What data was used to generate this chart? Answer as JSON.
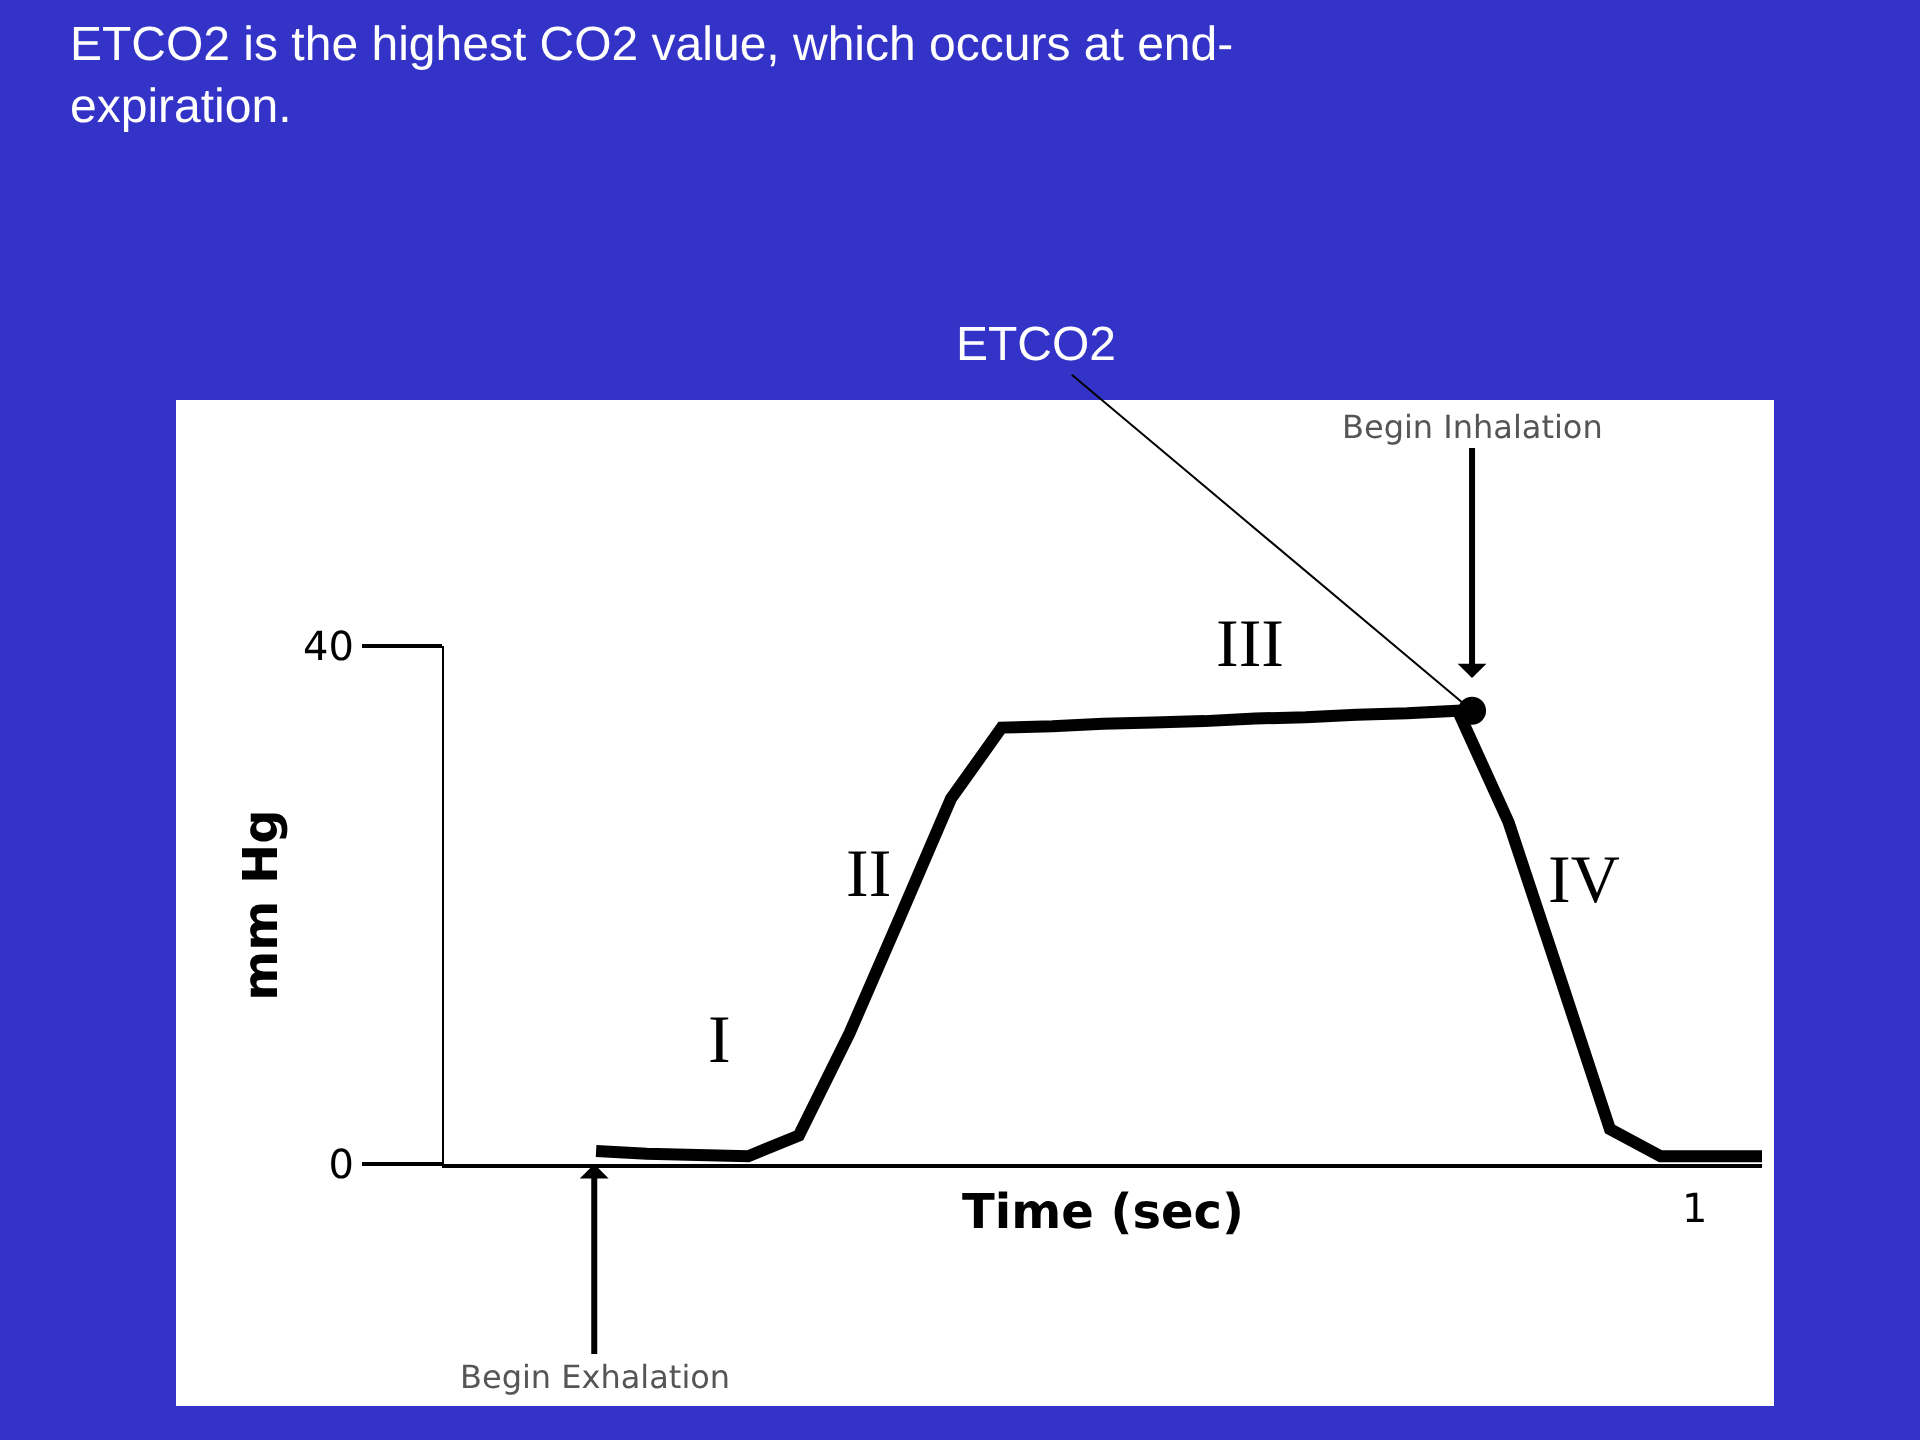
{
  "chart_data": {
    "type": "line",
    "title": "ETCO2 is the highest CO2 value, which occurs at end-\nexpiration.",
    "xlabel": "Time (sec)",
    "ylabel": "mm Hg",
    "ylim": [
      0,
      40
    ],
    "yticks": [
      0,
      40
    ],
    "categories": [
      null,
      null,
      null,
      null,
      null,
      null,
      null,
      null,
      null,
      null,
      null,
      null,
      null,
      null,
      null,
      null,
      null,
      null,
      null,
      null,
      null,
      null,
      null,
      null,
      null,
      null,
      null
    ],
    "series": [
      {
        "color": "#000000",
        "values": [
          null,
          null,
          null,
          1.0,
          0.8,
          0.7,
          0.6,
          2.2,
          10.1,
          19.1,
          28.2,
          33.7,
          33.8,
          34.0,
          34.1,
          34.2,
          34.4,
          34.5,
          34.7,
          34.8,
          35.0,
          26.4,
          14.6,
          2.7,
          0.6,
          0.6,
          0.6
        ]
      }
    ],
    "annotations": [
      "ETCO2",
      "Begin Inhalation",
      "Begin Exhalation",
      "I",
      "II",
      "III",
      "IV",
      "1"
    ]
  }
}
